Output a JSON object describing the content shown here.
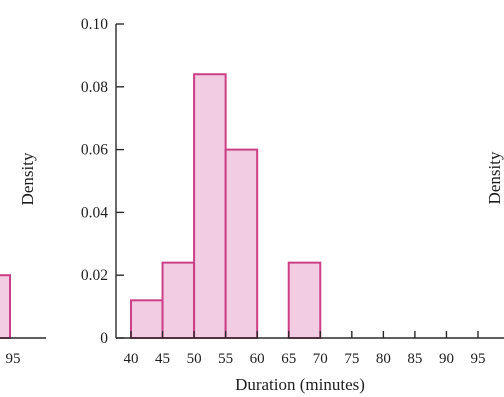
{
  "chart_data": {
    "type": "bar",
    "xlabel": "Duration (minutes)",
    "ylabel": "Density",
    "ylim": [
      0,
      0.1
    ],
    "xlim": [
      40,
      95
    ],
    "y_ticks": [
      "0",
      "0.02",
      "0.04",
      "0.06",
      "0.08",
      "0.10"
    ],
    "x_ticks": [
      "40",
      "45",
      "50",
      "55",
      "60",
      "65",
      "70",
      "75",
      "80",
      "85",
      "90",
      "95"
    ],
    "bins": [
      {
        "start": 40,
        "end": 45,
        "density": 0.012
      },
      {
        "start": 45,
        "end": 50,
        "density": 0.024
      },
      {
        "start": 50,
        "end": 55,
        "density": 0.084
      },
      {
        "start": 55,
        "end": 60,
        "density": 0.06
      },
      {
        "start": 60,
        "end": 65,
        "density": 0
      },
      {
        "start": 65,
        "end": 70,
        "density": 0.024
      },
      {
        "start": 70,
        "end": 75,
        "density": 0
      },
      {
        "start": 75,
        "end": 80,
        "density": 0
      },
      {
        "start": 80,
        "end": 85,
        "density": 0
      },
      {
        "start": 85,
        "end": 90,
        "density": 0
      },
      {
        "start": 90,
        "end": 95,
        "density": 0
      }
    ],
    "grid": false,
    "colors": {
      "bar_fill": "#f1cce2",
      "bar_edge": "#cc3f87"
    }
  },
  "left_panel_fragment": {
    "x_tick": "95",
    "bar_density": 0.02,
    "colors": {
      "bar_fill": "#f1cce2",
      "bar_edge": "#cc3f87"
    }
  },
  "right_panel_fragment": {
    "ylabel": "Density"
  }
}
